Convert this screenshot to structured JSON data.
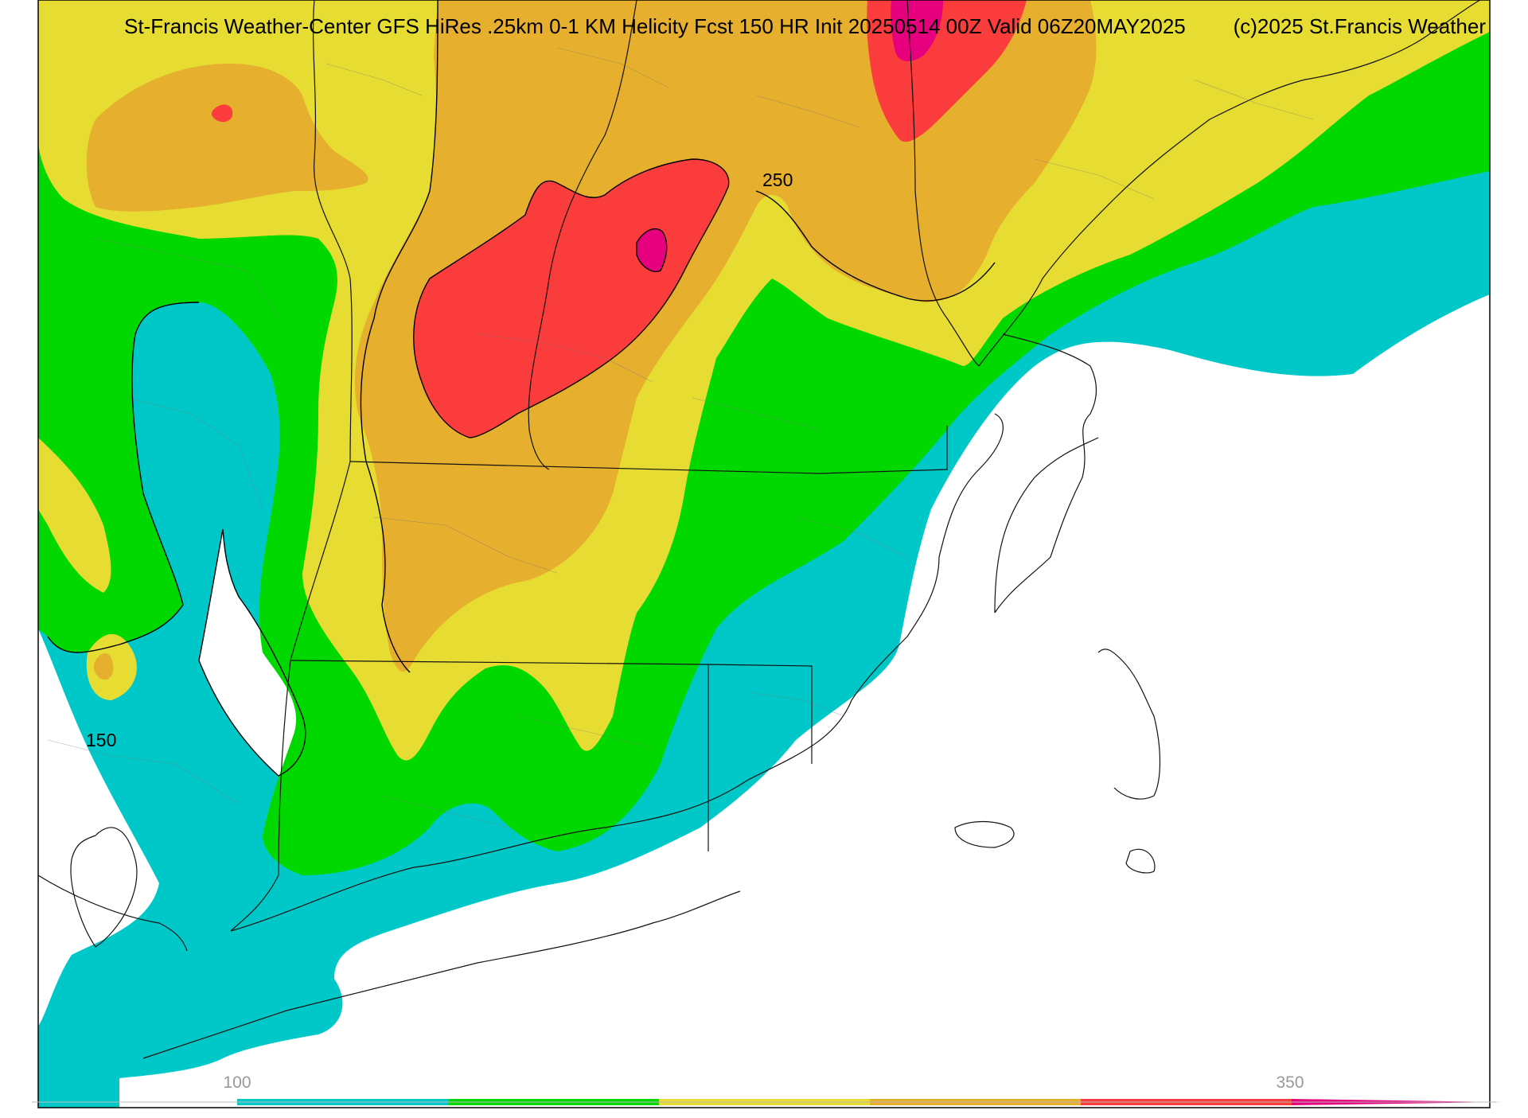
{
  "map": {
    "title": "St-Francis Weather-Center GFS HiRes .25km 0-1 KM Helicity Fcst 150 HR Init 20250514 00Z  Valid 06Z20MAY2025",
    "credit": "(c)2025 St.Francis Weather",
    "contour_labels": [
      {
        "text": "250",
        "name": "contour-label-250"
      },
      {
        "text": "150",
        "name": "contour-label-150"
      }
    ],
    "colorbar": {
      "label_low": "100",
      "label_high": "350",
      "bins": [
        {
          "range": "100-150",
          "color": "#00c8c8"
        },
        {
          "range": "150-200",
          "color": "#00d800"
        },
        {
          "range": "200-250",
          "color": "#e6dc32"
        },
        {
          "range": "250-300",
          "color": "#e6af2d"
        },
        {
          "range": "300-350",
          "color": "#fa3c3c"
        },
        {
          "range": ">350",
          "color": "#e6007e"
        }
      ]
    },
    "colors": {
      "cyan": "#00c8c8",
      "green": "#00d800",
      "yellow": "#e6dc32",
      "orange": "#e6af2d",
      "red": "#fa3c3c",
      "magenta": "#e6007e"
    }
  }
}
